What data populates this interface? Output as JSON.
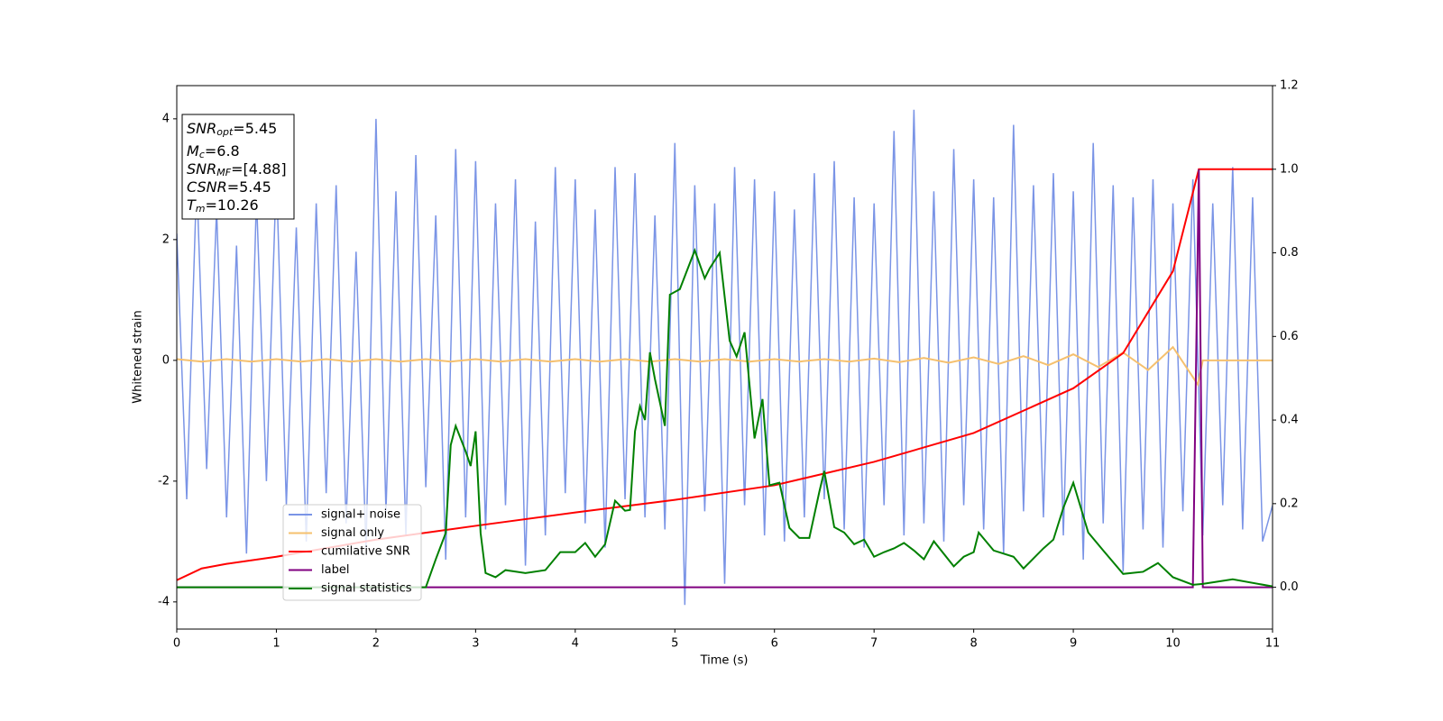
{
  "chart_data": {
    "type": "line",
    "xlabel": "Time (s)",
    "ylabel": "Whitened strain",
    "xlim": [
      0,
      11
    ],
    "xticks": [
      0,
      1,
      2,
      3,
      4,
      5,
      6,
      7,
      8,
      9,
      10,
      11
    ],
    "ylim": [
      -4.45,
      4.55
    ],
    "yticks": [
      -4,
      -2,
      0,
      2,
      4
    ],
    "y2lim": [
      -0.1,
      1.2
    ],
    "y2ticks": [
      {
        "value": 0,
        "label": "0.0"
      },
      {
        "value": 0.2,
        "label": "0.2"
      },
      {
        "value": 0.4,
        "label": "0.4"
      },
      {
        "value": 0.6,
        "label": "0.6"
      },
      {
        "value": 0.8,
        "label": "0.8"
      },
      {
        "value": 1.0,
        "label": "1.0"
      },
      {
        "value": 1.2,
        "label": "1.2"
      }
    ],
    "legend": "lower left",
    "annotations": [
      {
        "symbol": "SNR",
        "sub": "opt",
        "text": "=5.45"
      },
      {
        "symbol": "M",
        "sub": "c",
        "text": "=6.8"
      },
      {
        "symbol": "SNR",
        "sub": "MF",
        "text": "=[4.88]"
      },
      {
        "symbol": "CSNR",
        "text": "=5.45"
      },
      {
        "symbol": "T",
        "sub": "m",
        "text": "=10.26"
      }
    ],
    "series": [
      {
        "name": "signal+ noise",
        "color": "#7a94e6",
        "x": [
          0,
          0.1,
          0.2,
          0.3,
          0.4,
          0.5,
          0.6,
          0.7,
          0.8,
          0.9,
          1,
          1.1,
          1.2,
          1.3,
          1.4,
          1.5,
          1.6,
          1.7,
          1.8,
          1.9,
          2,
          2.1,
          2.2,
          2.3,
          2.4,
          2.5,
          2.6,
          2.7,
          2.8,
          2.9,
          3,
          3.1,
          3.2,
          3.3,
          3.4,
          3.5,
          3.6,
          3.7,
          3.8,
          3.9,
          4,
          4.1,
          4.2,
          4.3,
          4.4,
          4.5,
          4.6,
          4.7,
          4.8,
          4.9,
          5,
          5.1,
          5.2,
          5.3,
          5.4,
          5.5,
          5.6,
          5.7,
          5.8,
          5.9,
          6,
          6.1,
          6.2,
          6.3,
          6.4,
          6.5,
          6.6,
          6.7,
          6.8,
          6.9,
          7,
          7.1,
          7.2,
          7.3,
          7.4,
          7.5,
          7.6,
          7.7,
          7.8,
          7.9,
          8,
          8.1,
          8.2,
          8.3,
          8.4,
          8.5,
          8.6,
          8.7,
          8.8,
          8.9,
          9,
          9.1,
          9.2,
          9.3,
          9.4,
          9.5,
          9.6,
          9.7,
          9.8,
          9.9,
          10,
          10.1,
          10.2,
          10.3,
          10.4,
          10.5,
          10.6,
          10.7,
          10.8,
          10.9,
          11
        ],
        "values": [
          2.1,
          -2.3,
          3.0,
          -1.8,
          2.5,
          -2.6,
          1.9,
          -3.2,
          2.7,
          -2.0,
          3.1,
          -2.4,
          2.2,
          -3.0,
          2.6,
          -2.2,
          2.9,
          -2.7,
          1.8,
          -3.1,
          4.0,
          -2.5,
          2.8,
          -2.9,
          3.4,
          -2.1,
          2.4,
          -3.3,
          3.5,
          -2.6,
          3.3,
          -2.8,
          2.6,
          -2.4,
          3.0,
          -3.4,
          2.3,
          -2.9,
          3.2,
          -2.2,
          3.0,
          -2.7,
          2.5,
          -3.1,
          3.2,
          -2.3,
          3.1,
          -2.6,
          2.4,
          -2.8,
          3.6,
          -4.05,
          2.9,
          -2.5,
          2.6,
          -3.7,
          3.2,
          -2.4,
          3.0,
          -2.9,
          2.8,
          -3.0,
          2.5,
          -2.6,
          3.1,
          -2.3,
          3.3,
          -2.8,
          2.7,
          -3.1,
          2.6,
          -2.4,
          3.8,
          -2.9,
          4.15,
          -2.7,
          2.8,
          -3.0,
          3.5,
          -2.4,
          3.0,
          -2.8,
          2.7,
          -3.2,
          3.9,
          -2.5,
          2.9,
          -2.6,
          3.1,
          -2.9,
          2.8,
          -3.3,
          3.6,
          -2.7,
          2.9,
          -3.5,
          2.7,
          -2.8,
          3.0,
          -3.1,
          2.6,
          -2.5,
          3.0,
          -2.9,
          2.6,
          -2.4,
          3.2,
          -2.8,
          2.7,
          -3.0,
          -2.4
        ]
      },
      {
        "name": "signal only",
        "color": "#f5c06e",
        "x": [
          0,
          0.25,
          0.5,
          0.75,
          1,
          1.25,
          1.5,
          1.75,
          2,
          2.25,
          2.5,
          2.75,
          3,
          3.25,
          3.5,
          3.75,
          4,
          4.25,
          4.5,
          4.75,
          5,
          5.25,
          5.5,
          5.75,
          6,
          6.25,
          6.5,
          6.75,
          7,
          7.25,
          7.5,
          7.75,
          8,
          8.25,
          8.5,
          8.75,
          9,
          9.25,
          9.5,
          9.75,
          10,
          10.25,
          10.3,
          11
        ],
        "values": [
          0.02,
          -0.02,
          0.02,
          -0.02,
          0.02,
          -0.02,
          0.02,
          -0.02,
          0.02,
          -0.02,
          0.02,
          -0.02,
          0.02,
          -0.02,
          0.02,
          -0.02,
          0.02,
          -0.02,
          0.02,
          -0.02,
          0.02,
          -0.02,
          0.02,
          -0.02,
          0.02,
          -0.02,
          0.02,
          -0.02,
          0.03,
          -0.03,
          0.04,
          -0.04,
          0.05,
          -0.06,
          0.07,
          -0.08,
          0.1,
          -0.11,
          0.13,
          -0.16,
          0.22,
          -0.4,
          0,
          0
        ]
      },
      {
        "name": "cumilative SNR",
        "color": "#ff0000",
        "axis": "y2",
        "x": [
          0,
          0.25,
          0.5,
          1,
          2,
          3,
          4,
          5,
          6,
          7,
          8,
          9,
          9.5,
          10,
          10.26,
          11
        ],
        "values": [
          0.017,
          0.045,
          0.056,
          0.073,
          0.114,
          0.147,
          0.179,
          0.209,
          0.244,
          0.3,
          0.369,
          0.476,
          0.56,
          0.756,
          1.0,
          1.0
        ]
      },
      {
        "name": "label",
        "color": "#800080",
        "axis": "y2",
        "x": [
          0,
          10.2,
          10.26,
          10.3,
          11
        ],
        "values": [
          0,
          0,
          1.0,
          0,
          0
        ]
      },
      {
        "name": "signal statistics",
        "color": "#008000",
        "axis": "y2",
        "x": [
          0,
          2.5,
          2.6,
          2.7,
          2.75,
          2.8,
          2.9,
          2.95,
          3.0,
          3.05,
          3.1,
          3.2,
          3.3,
          3.5,
          3.7,
          3.85,
          4.0,
          4.1,
          4.2,
          4.3,
          4.4,
          4.5,
          4.55,
          4.6,
          4.65,
          4.7,
          4.75,
          4.8,
          4.9,
          4.95,
          5.05,
          5.2,
          5.3,
          5.35,
          5.45,
          5.55,
          5.62,
          5.7,
          5.8,
          5.88,
          5.95,
          6.05,
          6.15,
          6.25,
          6.35,
          6.45,
          6.5,
          6.6,
          6.7,
          6.8,
          6.9,
          7.0,
          7.1,
          7.2,
          7.3,
          7.4,
          7.5,
          7.6,
          7.8,
          7.9,
          8.0,
          8.05,
          8.2,
          8.4,
          8.5,
          8.7,
          8.8,
          8.9,
          9.0,
          9.15,
          9.3,
          9.5,
          9.7,
          9.85,
          10.0,
          10.2,
          10.3,
          10.6,
          11
        ],
        "values": [
          0.0,
          0.0,
          0.067,
          0.13,
          0.34,
          0.386,
          0.325,
          0.29,
          0.373,
          0.13,
          0.034,
          0.024,
          0.041,
          0.034,
          0.041,
          0.084,
          0.084,
          0.106,
          0.073,
          0.103,
          0.207,
          0.183,
          0.185,
          0.373,
          0.433,
          0.4,
          0.562,
          0.498,
          0.386,
          0.7,
          0.713,
          0.806,
          0.739,
          0.763,
          0.8,
          0.59,
          0.552,
          0.61,
          0.356,
          0.45,
          0.244,
          0.25,
          0.142,
          0.118,
          0.118,
          0.228,
          0.278,
          0.144,
          0.131,
          0.103,
          0.114,
          0.073,
          0.084,
          0.093,
          0.106,
          0.088,
          0.067,
          0.11,
          0.05,
          0.073,
          0.084,
          0.131,
          0.088,
          0.073,
          0.045,
          0.093,
          0.114,
          0.19,
          0.25,
          0.131,
          0.088,
          0.032,
          0.037,
          0.058,
          0.024,
          0.006,
          0.008,
          0.019,
          0.002
        ]
      }
    ]
  }
}
